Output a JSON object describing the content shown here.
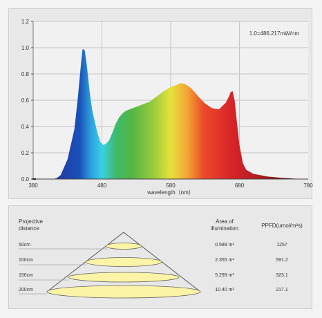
{
  "chart_data": [
    {
      "type": "area",
      "title": "",
      "note": "1.0=486.217mW/nm",
      "xlabel": "wavelength（nm）",
      "ylabel": "",
      "xlim": [
        380,
        780
      ],
      "ylim": [
        0.0,
        1.2
      ],
      "x_ticks": [
        "380",
        "480",
        "580",
        "680",
        "780"
      ],
      "y_ticks": [
        "0.0",
        "0.2",
        "0.4",
        "0.6",
        "0.8",
        "1.0",
        "1.2"
      ],
      "grid": true,
      "fill": "spectral-rainbow",
      "x": [
        380,
        400,
        410,
        415,
        420,
        430,
        440,
        445,
        450,
        452,
        455,
        458,
        462,
        466,
        470,
        473,
        476,
        478,
        482,
        486,
        490,
        495,
        500,
        505,
        510,
        515,
        520,
        530,
        540,
        550,
        560,
        570,
        580,
        590,
        595,
        600,
        605,
        610,
        620,
        630,
        640,
        650,
        660,
        665,
        667,
        670,
        673,
        676,
        680,
        685,
        690,
        700,
        720,
        740,
        760,
        780
      ],
      "y": [
        0.0,
        0.0,
        0.0,
        0.01,
        0.03,
        0.15,
        0.38,
        0.62,
        0.9,
        0.99,
        0.98,
        0.87,
        0.67,
        0.52,
        0.43,
        0.36,
        0.31,
        0.28,
        0.26,
        0.27,
        0.29,
        0.35,
        0.42,
        0.47,
        0.5,
        0.52,
        0.53,
        0.55,
        0.57,
        0.59,
        0.63,
        0.67,
        0.7,
        0.72,
        0.73,
        0.725,
        0.71,
        0.69,
        0.63,
        0.575,
        0.54,
        0.53,
        0.58,
        0.63,
        0.66,
        0.67,
        0.6,
        0.45,
        0.26,
        0.12,
        0.07,
        0.04,
        0.02,
        0.01,
        0.003,
        0.0
      ]
    },
    {
      "type": "table",
      "header": {
        "distance": [
          "Projective",
          "distance"
        ],
        "area": [
          "Area of",
          "illumination"
        ],
        "ppfd": "PPFD(umol/m²s)"
      },
      "rows": [
        {
          "distance": "50cm",
          "area": "0.589 m²",
          "ppfd": "1257"
        },
        {
          "distance": "100cm",
          "area": "2.355 m²",
          "ppfd": "591.2"
        },
        {
          "distance": "150cm",
          "area": "5.299 m²",
          "ppfd": "323.1"
        },
        {
          "distance": "200cm",
          "area": "10.40 m²",
          "ppfd": "217.1"
        }
      ]
    }
  ]
}
